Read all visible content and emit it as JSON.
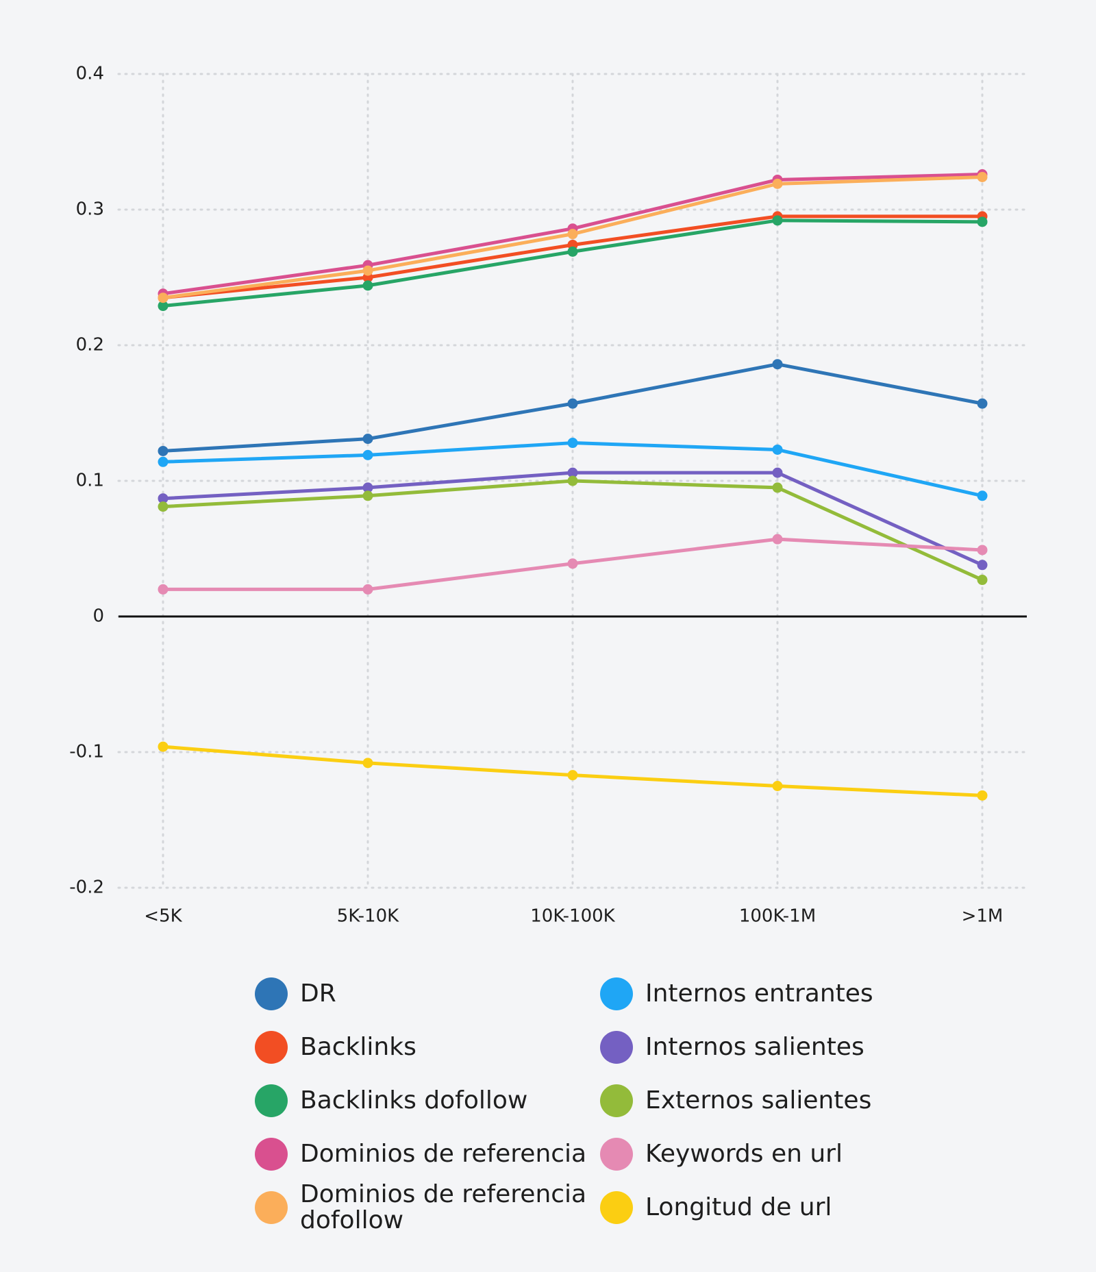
{
  "chart_data": {
    "type": "line",
    "categories": [
      "<5K",
      "5K-10K",
      "10K-100K",
      "100K-1M",
      ">1M"
    ],
    "ylim": [
      -0.2,
      0.4
    ],
    "yticks": [
      -0.2,
      -0.1,
      0,
      0.1,
      0.2,
      0.3,
      0.4
    ],
    "grid": true,
    "series": [
      {
        "name": "DR",
        "color": "#2e75b6",
        "values": [
          0.122,
          0.131,
          0.157,
          0.186,
          0.157
        ]
      },
      {
        "name": "Backlinks",
        "color": "#f24e23",
        "values": [
          0.235,
          0.25,
          0.274,
          0.295,
          0.295
        ]
      },
      {
        "name": "Backlinks dofollow",
        "color": "#27a566",
        "values": [
          0.229,
          0.244,
          0.269,
          0.292,
          0.291
        ]
      },
      {
        "name": "Dominios de referencia",
        "color": "#d9508f",
        "values": [
          0.238,
          0.259,
          0.286,
          0.322,
          0.326
        ]
      },
      {
        "name": "Dominios de referencia dofollow",
        "color": "#fbae5a",
        "values": [
          0.235,
          0.255,
          0.282,
          0.319,
          0.324
        ]
      },
      {
        "name": "Internos entrantes",
        "color": "#1fa6f5",
        "values": [
          0.114,
          0.119,
          0.128,
          0.123,
          0.089
        ]
      },
      {
        "name": "Internos salientes",
        "color": "#7460c2",
        "values": [
          0.087,
          0.095,
          0.106,
          0.106,
          0.038
        ]
      },
      {
        "name": "Externos salientes",
        "color": "#93bb3a",
        "values": [
          0.081,
          0.089,
          0.1,
          0.095,
          0.027
        ]
      },
      {
        "name": "Keywords en url",
        "color": "#e58ab3",
        "values": [
          0.02,
          0.02,
          0.039,
          0.057,
          0.049
        ]
      },
      {
        "name": "Longitud de url",
        "color": "#fbce12",
        "values": [
          -0.096,
          -0.108,
          -0.117,
          -0.125,
          -0.132
        ]
      }
    ]
  }
}
